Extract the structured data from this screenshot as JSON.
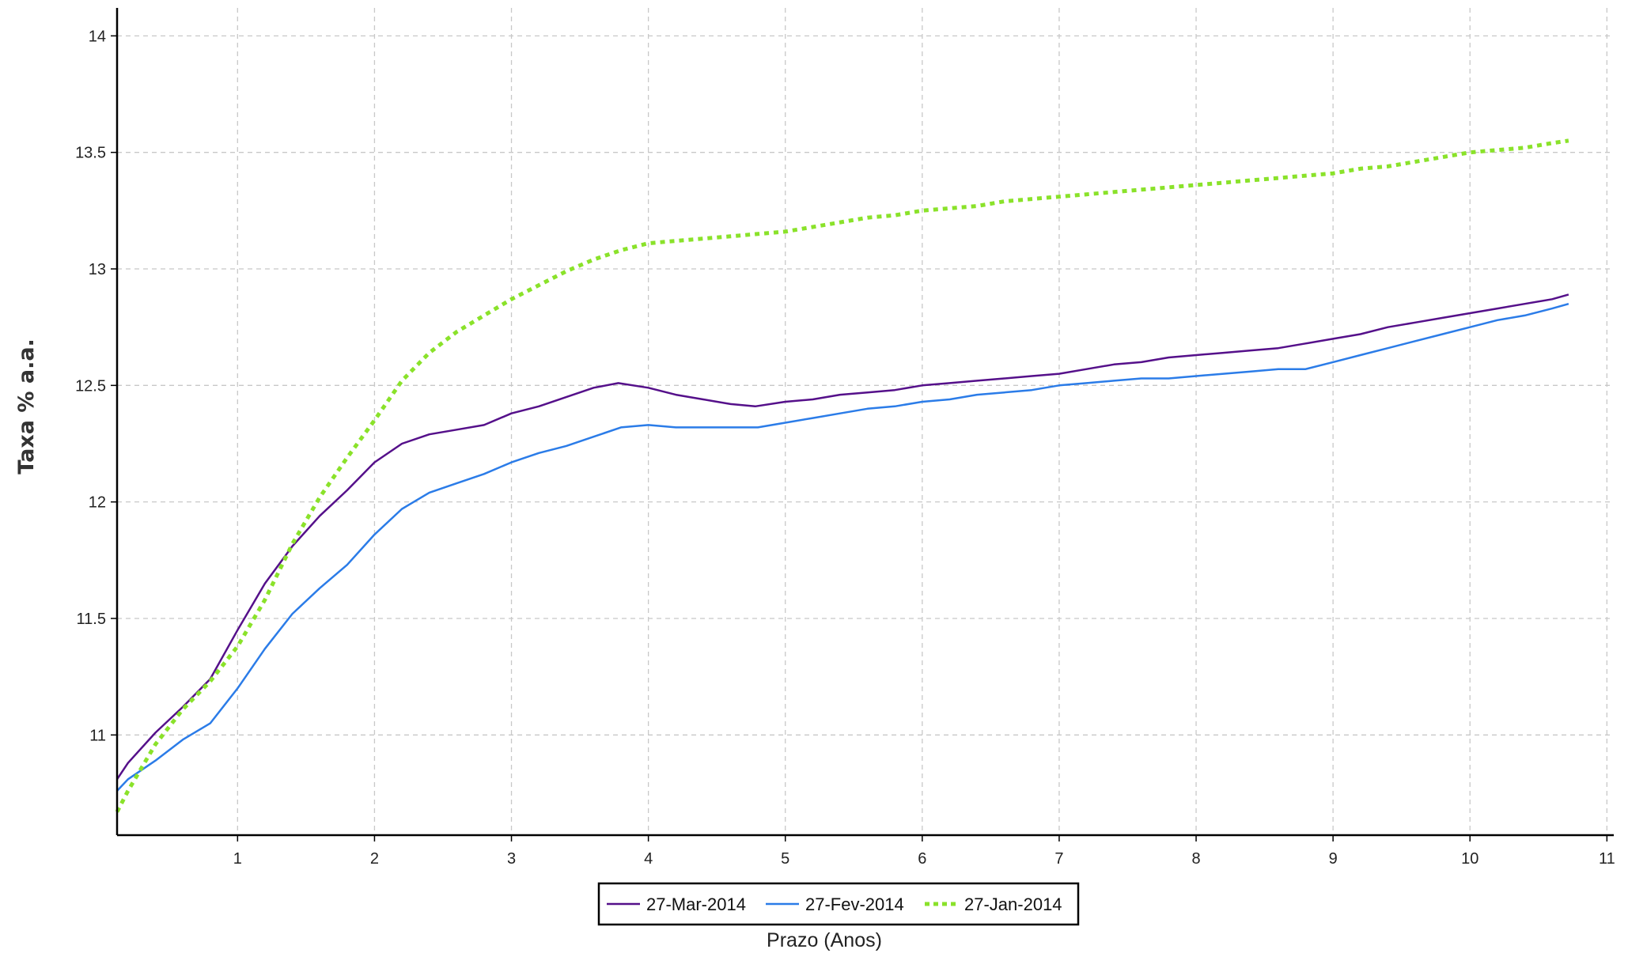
{
  "chart_data": {
    "type": "line",
    "title": "",
    "xlabel": "Prazo (Anos)",
    "ylabel": "Taxa % a.a.",
    "xlim": [
      0.12,
      11.05
    ],
    "ylim": [
      10.57,
      14.12
    ],
    "xticks": [
      1,
      2,
      3,
      4,
      5,
      6,
      7,
      8,
      9,
      10,
      11
    ],
    "yticks": [
      11,
      11.5,
      12,
      12.5,
      13,
      13.5,
      14
    ],
    "xtick_labels": [
      "1",
      "2",
      "3",
      "4",
      "5",
      "6",
      "7",
      "8",
      "9",
      "10",
      "11"
    ],
    "ytick_labels": [
      "11",
      "11.5",
      "12",
      "12.5",
      "13",
      "13.5",
      "14"
    ],
    "grid": true,
    "legend_position": "bottom-center",
    "series": [
      {
        "name": "27-Mar-2014",
        "color": "#55108a",
        "style": "solid",
        "points": [
          [
            0.12,
            10.81
          ],
          [
            0.2,
            10.88
          ],
          [
            0.4,
            11.01
          ],
          [
            0.6,
            11.12
          ],
          [
            0.8,
            11.24
          ],
          [
            1.0,
            11.45
          ],
          [
            1.2,
            11.65
          ],
          [
            1.4,
            11.81
          ],
          [
            1.6,
            11.94
          ],
          [
            1.8,
            12.05
          ],
          [
            2.0,
            12.17
          ],
          [
            2.2,
            12.25
          ],
          [
            2.4,
            12.29
          ],
          [
            2.6,
            12.31
          ],
          [
            2.8,
            12.33
          ],
          [
            3.0,
            12.38
          ],
          [
            3.2,
            12.41
          ],
          [
            3.4,
            12.45
          ],
          [
            3.6,
            12.49
          ],
          [
            3.78,
            12.51
          ],
          [
            4.0,
            12.49
          ],
          [
            4.2,
            12.46
          ],
          [
            4.4,
            12.44
          ],
          [
            4.6,
            12.42
          ],
          [
            4.78,
            12.41
          ],
          [
            5.0,
            12.43
          ],
          [
            5.2,
            12.44
          ],
          [
            5.4,
            12.46
          ],
          [
            5.6,
            12.47
          ],
          [
            5.8,
            12.48
          ],
          [
            6.0,
            12.5
          ],
          [
            6.2,
            12.51
          ],
          [
            6.4,
            12.52
          ],
          [
            6.6,
            12.53
          ],
          [
            6.8,
            12.54
          ],
          [
            7.0,
            12.55
          ],
          [
            7.2,
            12.57
          ],
          [
            7.4,
            12.59
          ],
          [
            7.6,
            12.6
          ],
          [
            7.8,
            12.62
          ],
          [
            8.0,
            12.63
          ],
          [
            8.2,
            12.64
          ],
          [
            8.4,
            12.65
          ],
          [
            8.6,
            12.66
          ],
          [
            8.8,
            12.68
          ],
          [
            9.0,
            12.7
          ],
          [
            9.2,
            12.72
          ],
          [
            9.4,
            12.75
          ],
          [
            9.6,
            12.77
          ],
          [
            9.8,
            12.79
          ],
          [
            10.0,
            12.81
          ],
          [
            10.2,
            12.83
          ],
          [
            10.4,
            12.85
          ],
          [
            10.6,
            12.87
          ],
          [
            10.72,
            12.89
          ]
        ]
      },
      {
        "name": "27-Fev-2014",
        "color": "#2b7ce8",
        "style": "solid",
        "points": [
          [
            0.12,
            10.76
          ],
          [
            0.2,
            10.81
          ],
          [
            0.4,
            10.89
          ],
          [
            0.6,
            10.98
          ],
          [
            0.8,
            11.05
          ],
          [
            1.0,
            11.2
          ],
          [
            1.2,
            11.37
          ],
          [
            1.4,
            11.52
          ],
          [
            1.6,
            11.63
          ],
          [
            1.8,
            11.73
          ],
          [
            2.0,
            11.86
          ],
          [
            2.2,
            11.97
          ],
          [
            2.4,
            12.04
          ],
          [
            2.6,
            12.08
          ],
          [
            2.8,
            12.12
          ],
          [
            3.0,
            12.17
          ],
          [
            3.2,
            12.21
          ],
          [
            3.4,
            12.24
          ],
          [
            3.6,
            12.28
          ],
          [
            3.8,
            12.32
          ],
          [
            4.0,
            12.33
          ],
          [
            4.2,
            12.32
          ],
          [
            4.4,
            12.32
          ],
          [
            4.6,
            12.32
          ],
          [
            4.8,
            12.32
          ],
          [
            5.0,
            12.34
          ],
          [
            5.2,
            12.36
          ],
          [
            5.4,
            12.38
          ],
          [
            5.6,
            12.4
          ],
          [
            5.8,
            12.41
          ],
          [
            6.0,
            12.43
          ],
          [
            6.2,
            12.44
          ],
          [
            6.4,
            12.46
          ],
          [
            6.6,
            12.47
          ],
          [
            6.8,
            12.48
          ],
          [
            7.0,
            12.5
          ],
          [
            7.2,
            12.51
          ],
          [
            7.4,
            12.52
          ],
          [
            7.6,
            12.53
          ],
          [
            7.8,
            12.53
          ],
          [
            8.0,
            12.54
          ],
          [
            8.2,
            12.55
          ],
          [
            8.4,
            12.56
          ],
          [
            8.6,
            12.57
          ],
          [
            8.8,
            12.57
          ],
          [
            9.0,
            12.6
          ],
          [
            9.2,
            12.63
          ],
          [
            9.4,
            12.66
          ],
          [
            9.6,
            12.69
          ],
          [
            9.8,
            12.72
          ],
          [
            10.0,
            12.75
          ],
          [
            10.2,
            12.78
          ],
          [
            10.4,
            12.8
          ],
          [
            10.6,
            12.83
          ],
          [
            10.72,
            12.85
          ]
        ]
      },
      {
        "name": "27-Jan-2014",
        "color": "#8ae22a",
        "style": "dotted",
        "points": [
          [
            0.12,
            10.67
          ],
          [
            0.2,
            10.76
          ],
          [
            0.4,
            10.96
          ],
          [
            0.6,
            11.11
          ],
          [
            0.8,
            11.23
          ],
          [
            1.0,
            11.38
          ],
          [
            1.2,
            11.58
          ],
          [
            1.4,
            11.82
          ],
          [
            1.6,
            12.02
          ],
          [
            1.8,
            12.19
          ],
          [
            2.0,
            12.35
          ],
          [
            2.2,
            12.52
          ],
          [
            2.4,
            12.64
          ],
          [
            2.6,
            12.73
          ],
          [
            2.8,
            12.8
          ],
          [
            3.0,
            12.87
          ],
          [
            3.2,
            12.93
          ],
          [
            3.4,
            12.99
          ],
          [
            3.6,
            13.04
          ],
          [
            3.8,
            13.08
          ],
          [
            4.0,
            13.11
          ],
          [
            4.2,
            13.12
          ],
          [
            4.4,
            13.13
          ],
          [
            4.6,
            13.14
          ],
          [
            4.8,
            13.15
          ],
          [
            5.0,
            13.16
          ],
          [
            5.2,
            13.18
          ],
          [
            5.4,
            13.2
          ],
          [
            5.6,
            13.22
          ],
          [
            5.8,
            13.23
          ],
          [
            6.0,
            13.25
          ],
          [
            6.2,
            13.26
          ],
          [
            6.4,
            13.27
          ],
          [
            6.6,
            13.29
          ],
          [
            6.8,
            13.3
          ],
          [
            7.0,
            13.31
          ],
          [
            7.2,
            13.32
          ],
          [
            7.4,
            13.33
          ],
          [
            7.6,
            13.34
          ],
          [
            7.8,
            13.35
          ],
          [
            8.0,
            13.36
          ],
          [
            8.2,
            13.37
          ],
          [
            8.4,
            13.38
          ],
          [
            8.6,
            13.39
          ],
          [
            8.8,
            13.4
          ],
          [
            9.0,
            13.41
          ],
          [
            9.2,
            13.43
          ],
          [
            9.4,
            13.44
          ],
          [
            9.6,
            13.46
          ],
          [
            9.8,
            13.48
          ],
          [
            10.0,
            13.5
          ],
          [
            10.2,
            13.51
          ],
          [
            10.4,
            13.52
          ],
          [
            10.6,
            13.54
          ],
          [
            10.72,
            13.55
          ]
        ]
      }
    ]
  }
}
